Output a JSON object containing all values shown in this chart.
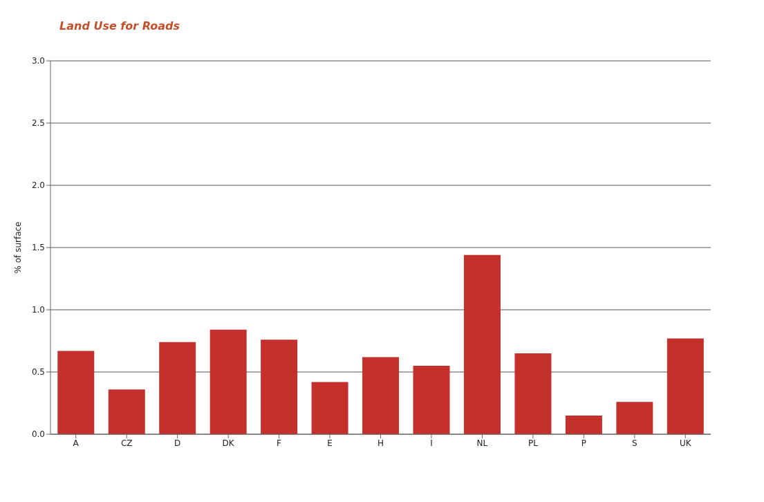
{
  "chart_data": {
    "type": "bar",
    "title": "Land Use for Roads",
    "ylabel": "% of surface",
    "categories": [
      "A",
      "CZ",
      "D",
      "DK",
      "F",
      "E",
      "H",
      "I",
      "NL",
      "PL",
      "P",
      "S",
      "UK"
    ],
    "values": [
      0.67,
      0.36,
      0.74,
      0.84,
      0.76,
      0.42,
      0.62,
      0.55,
      1.44,
      0.65,
      0.15,
      0.26,
      0.77
    ],
    "color": "#c4302b",
    "ylim": [
      0,
      3
    ],
    "yticks": [
      {
        "value": 0,
        "label": "0.0"
      },
      {
        "value": 0.5,
        "label": "0.5"
      },
      {
        "value": 1,
        "label": "1.0"
      },
      {
        "value": 1.5,
        "label": "1.5"
      },
      {
        "value": 2,
        "label": "2.0"
      },
      {
        "value": 2.5,
        "label": "2.5"
      },
      {
        "value": 3,
        "label": "3.0"
      }
    ],
    "grid": "y"
  }
}
